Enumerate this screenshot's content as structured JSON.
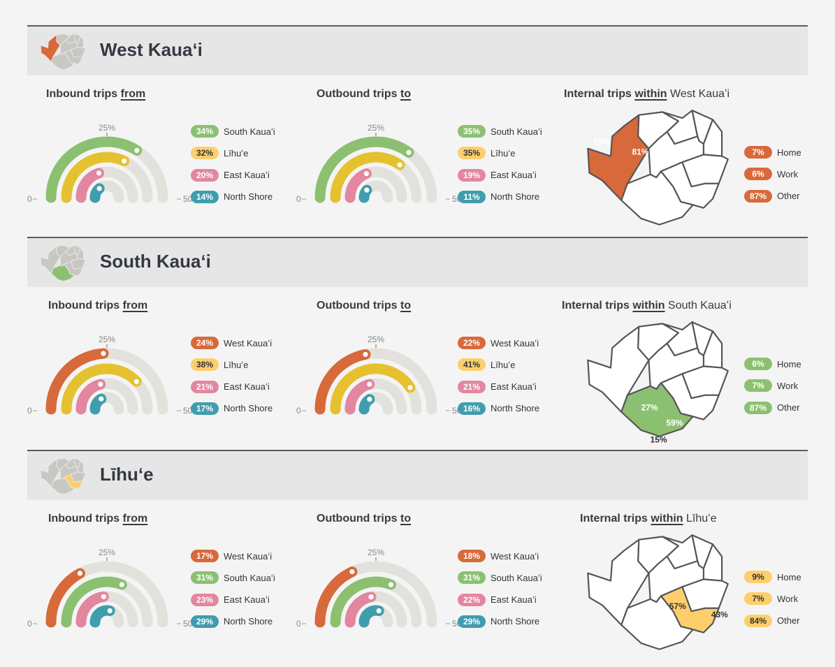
{
  "colors": {
    "west": "#d8693b",
    "south": "#8cc071",
    "lihue": "#e5c12f",
    "lihue_map": "#fdcf6c",
    "east": "#e3869f",
    "north": "#3f9dad",
    "track": "#e3e1dc"
  },
  "gauge_axis": {
    "min": "0",
    "mid": "25%",
    "max": "50%"
  },
  "sections": [
    {
      "title": "West Kauaʻi",
      "inbound": {
        "heading_prefix": "Inbound trips ",
        "heading_keyword": "from",
        "chart_data": {
          "type": "radial-bar",
          "range": [
            0,
            50
          ],
          "series": [
            {
              "name": "South Kauaʻi",
              "value": 34,
              "label": "34%",
              "color": "south"
            },
            {
              "name": "Līhuʻe",
              "value": 32,
              "label": "32%",
              "color": "lihue"
            },
            {
              "name": "East Kauaʻi",
              "value": 20,
              "label": "20%",
              "color": "east"
            },
            {
              "name": "North Shore",
              "value": 14,
              "label": "14%",
              "color": "north"
            }
          ]
        }
      },
      "outbound": {
        "heading_prefix": "Outbound trips ",
        "heading_keyword": "to",
        "chart_data": {
          "type": "radial-bar",
          "range": [
            0,
            50
          ],
          "series": [
            {
              "name": "South Kauaʻi",
              "value": 35,
              "label": "35%",
              "color": "south"
            },
            {
              "name": "Līhuʻe",
              "value": 35,
              "label": "35%",
              "color": "lihue"
            },
            {
              "name": "East Kauaʻi",
              "value": 19,
              "label": "19%",
              "color": "east"
            },
            {
              "name": "North Shore",
              "value": 11,
              "label": "11%",
              "color": "north"
            }
          ]
        }
      },
      "internal": {
        "heading_prefix": "Internal trips ",
        "heading_keyword": "within",
        "heading_suffix": " West Kauaʻi",
        "map_labels": [
          "19%",
          "81%"
        ],
        "purposes": [
          {
            "label": "Home",
            "value": "7%"
          },
          {
            "label": "Work",
            "value": "6%"
          },
          {
            "label": "Other",
            "value": "87%"
          }
        ]
      }
    },
    {
      "title": "South Kauaʻi",
      "inbound": {
        "heading_prefix": "Inbound trips ",
        "heading_keyword": "from",
        "chart_data": {
          "type": "radial-bar",
          "range": [
            0,
            50
          ],
          "series": [
            {
              "name": "West Kauaʻi",
              "value": 24,
              "label": "24%",
              "color": "west"
            },
            {
              "name": "Līhuʻe",
              "value": 38,
              "label": "38%",
              "color": "lihue"
            },
            {
              "name": "East Kauaʻi",
              "value": 21,
              "label": "21%",
              "color": "east"
            },
            {
              "name": "North Shore",
              "value": 17,
              "label": "17%",
              "color": "north"
            }
          ]
        }
      },
      "outbound": {
        "heading_prefix": "Outbound trips ",
        "heading_keyword": "to",
        "chart_data": {
          "type": "radial-bar",
          "range": [
            0,
            50
          ],
          "series": [
            {
              "name": "West Kauaʻi",
              "value": 22,
              "label": "22%",
              "color": "west"
            },
            {
              "name": "Līhuʻe",
              "value": 41,
              "label": "41%",
              "color": "lihue"
            },
            {
              "name": "East Kauaʻi",
              "value": 21,
              "label": "21%",
              "color": "east"
            },
            {
              "name": "North Shore",
              "value": 16,
              "label": "16%",
              "color": "north"
            }
          ]
        }
      },
      "internal": {
        "heading_prefix": "Internal trips ",
        "heading_keyword": "within",
        "heading_suffix": " South Kauaʻi",
        "map_labels": [
          "27%",
          "59%",
          "15%"
        ],
        "purposes": [
          {
            "label": "Home",
            "value": "6%"
          },
          {
            "label": "Work",
            "value": "7%"
          },
          {
            "label": "Other",
            "value": "87%"
          }
        ]
      }
    },
    {
      "title": "Līhuʻe",
      "inbound": {
        "heading_prefix": "Inbound trips ",
        "heading_keyword": "from",
        "chart_data": {
          "type": "radial-bar",
          "range": [
            0,
            50
          ],
          "series": [
            {
              "name": "West Kauaʻi",
              "value": 17,
              "label": "17%",
              "color": "west"
            },
            {
              "name": "South Kauaʻi",
              "value": 31,
              "label": "31%",
              "color": "south"
            },
            {
              "name": "East Kauaʻi",
              "value": 23,
              "label": "23%",
              "color": "east"
            },
            {
              "name": "North Shore",
              "value": 29,
              "label": "29%",
              "color": "north"
            }
          ]
        }
      },
      "outbound": {
        "heading_prefix": "Outbound trips ",
        "heading_keyword": "to",
        "chart_data": {
          "type": "radial-bar",
          "range": [
            0,
            50
          ],
          "series": [
            {
              "name": "West Kauaʻi",
              "value": 18,
              "label": "18%",
              "color": "west"
            },
            {
              "name": "South Kauaʻi",
              "value": 31,
              "label": "31%",
              "color": "south"
            },
            {
              "name": "East Kauaʻi",
              "value": 22,
              "label": "22%",
              "color": "east"
            },
            {
              "name": "North Shore",
              "value": 29,
              "label": "29%",
              "color": "north"
            }
          ]
        }
      },
      "internal": {
        "heading_prefix": "Internal trips ",
        "heading_keyword": "within",
        "heading_suffix": " Līhuʻe",
        "map_labels": [
          "57%",
          "43%"
        ],
        "purposes": [
          {
            "label": "Home",
            "value": "9%"
          },
          {
            "label": "Work",
            "value": "7%"
          },
          {
            "label": "Other",
            "value": "84%"
          }
        ]
      }
    }
  ]
}
